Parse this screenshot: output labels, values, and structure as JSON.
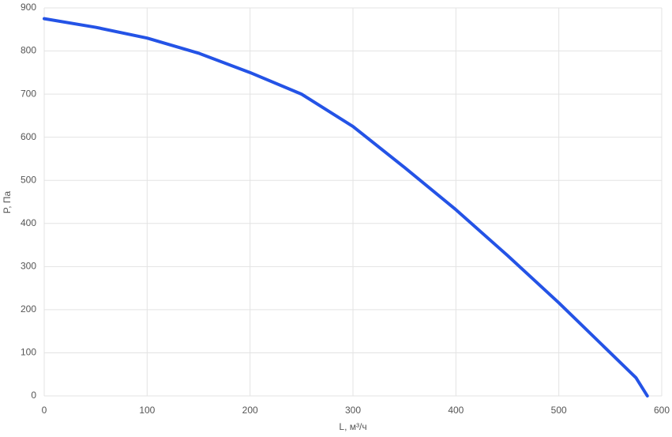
{
  "chart_data": {
    "type": "line",
    "x_label": "L, м³/ч",
    "y_label": "P, Па",
    "x": [
      0,
      50,
      100,
      150,
      200,
      250,
      300,
      350,
      400,
      450,
      500,
      550,
      575,
      586
    ],
    "series": [
      {
        "color": "#2453e6",
        "values": [
          875,
          855,
          830,
          795,
          750,
          700,
          625,
          530,
          432,
          326,
          216,
          100,
          42,
          0
        ]
      }
    ],
    "xlim": [
      0,
      600
    ],
    "xticks": [
      0,
      100,
      200,
      300,
      400,
      500,
      600
    ],
    "ylim": [
      0,
      900
    ],
    "yticks": [
      0,
      100,
      200,
      300,
      400,
      500,
      600,
      700,
      800,
      900
    ],
    "grid": true
  }
}
